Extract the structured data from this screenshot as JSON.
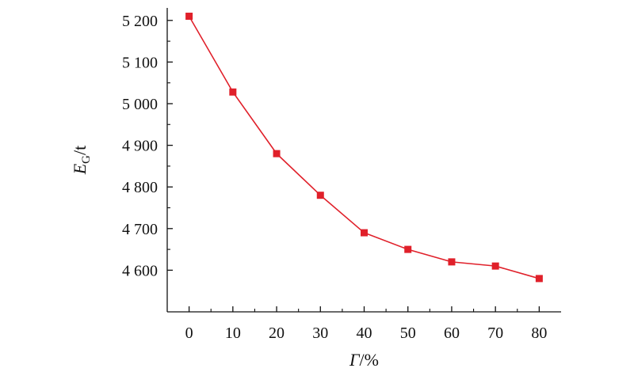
{
  "chart_data": {
    "type": "line",
    "title": "",
    "xlabel": {
      "symbol": "Γ",
      "unit": "/%"
    },
    "ylabel": {
      "symbol": "E",
      "subscript": "G",
      "unit": "/t"
    },
    "x": [
      0,
      10,
      20,
      30,
      40,
      50,
      60,
      70,
      80
    ],
    "series": [
      {
        "values": [
          5210,
          5028,
          4880,
          4780,
          4690,
          4650,
          4620,
          4610,
          4580
        ],
        "color": "#e0202a",
        "marker": "square"
      }
    ],
    "xlim": [
      -5,
      85
    ],
    "ylim": [
      4500,
      5230
    ],
    "xticks": [
      0,
      10,
      20,
      30,
      40,
      50,
      60,
      70,
      80
    ],
    "xtick_labels": [
      "0",
      "10",
      "20",
      "30",
      "40",
      "50",
      "60",
      "70",
      "80"
    ],
    "yticks": [
      4600,
      4700,
      4800,
      4900,
      5000,
      5100,
      5200
    ],
    "ytick_labels": [
      "4 600",
      "4 700",
      "4 800",
      "4 900",
      "5 000",
      "5 100",
      "5 200"
    ],
    "grid": false,
    "legend": "none"
  }
}
